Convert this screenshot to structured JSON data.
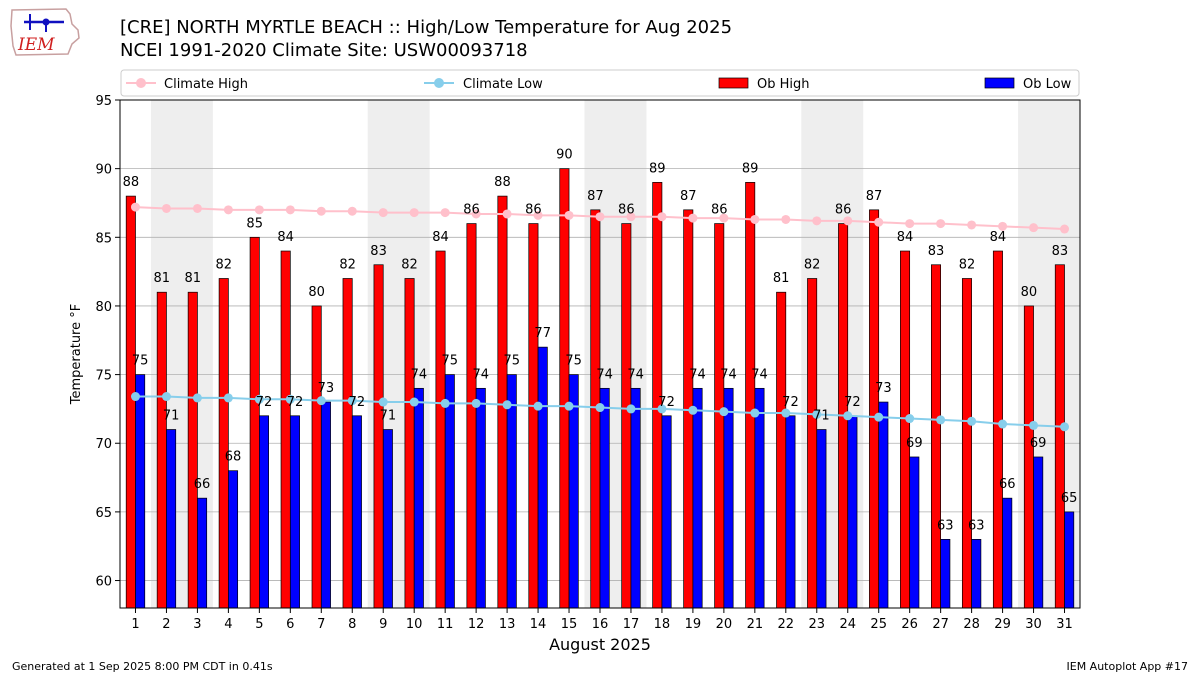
{
  "header": {
    "title_line1": "[CRE] NORTH MYRTLE BEACH :: High/Low Temperature for Aug 2025",
    "title_line2": "NCEI 1991-2020 Climate Site: USW00093718"
  },
  "logo": {
    "text": "IEM",
    "icon": "iowa-state-outline-logo"
  },
  "footer": {
    "left": "Generated at 1 Sep 2025 8:00 PM CDT in 0.41s",
    "right": "IEM Autoplot App #17"
  },
  "colors": {
    "ob_high": "#ff0000",
    "ob_low": "#0000ff",
    "climate_high": "#ffc0cb",
    "climate_low": "#87ceeb",
    "weekend_shade": "#eeeeee",
    "grid": "#b0b0b0"
  },
  "chart_data": {
    "type": "bar",
    "xlabel": "August 2025",
    "ylabel": "Temperature °F",
    "ylim": [
      58,
      95
    ],
    "yticks": [
      60,
      65,
      70,
      75,
      80,
      85,
      90,
      95
    ],
    "grid": "horizontal",
    "legend_position": "top",
    "categories": [
      "1",
      "2",
      "3",
      "4",
      "5",
      "6",
      "7",
      "8",
      "9",
      "10",
      "11",
      "12",
      "13",
      "14",
      "15",
      "16",
      "17",
      "18",
      "19",
      "20",
      "21",
      "22",
      "23",
      "24",
      "25",
      "26",
      "27",
      "28",
      "29",
      "30",
      "31"
    ],
    "weekend_shaded_days": [
      [
        2,
        3
      ],
      [
        9,
        10
      ],
      [
        16,
        17
      ],
      [
        23,
        24
      ],
      [
        30,
        31
      ]
    ],
    "series": [
      {
        "name": "Ob High",
        "kind": "bar",
        "values": [
          88,
          81,
          81,
          82,
          85,
          84,
          80,
          82,
          83,
          82,
          84,
          86,
          88,
          86,
          90,
          87,
          86,
          89,
          87,
          86,
          89,
          81,
          82,
          86,
          87,
          84,
          83,
          82,
          84,
          80,
          83
        ]
      },
      {
        "name": "Ob Low",
        "kind": "bar",
        "values": [
          75,
          71,
          66,
          68,
          72,
          72,
          73,
          72,
          71,
          74,
          75,
          74,
          75,
          77,
          75,
          74,
          74,
          72,
          74,
          74,
          74,
          72,
          71,
          72,
          73,
          69,
          63,
          63,
          66,
          69,
          65
        ]
      },
      {
        "name": "Climate High",
        "kind": "line",
        "values": [
          87.2,
          87.1,
          87.1,
          87.0,
          87.0,
          87.0,
          86.9,
          86.9,
          86.8,
          86.8,
          86.8,
          86.7,
          86.7,
          86.6,
          86.6,
          86.5,
          86.5,
          86.5,
          86.4,
          86.4,
          86.3,
          86.3,
          86.2,
          86.2,
          86.1,
          86.0,
          86.0,
          85.9,
          85.8,
          85.7,
          85.6
        ]
      },
      {
        "name": "Climate Low",
        "kind": "line",
        "values": [
          73.4,
          73.4,
          73.3,
          73.3,
          73.2,
          73.2,
          73.1,
          73.1,
          73.0,
          73.0,
          72.9,
          72.9,
          72.8,
          72.7,
          72.7,
          72.6,
          72.5,
          72.5,
          72.4,
          72.3,
          72.2,
          72.2,
          72.1,
          72.0,
          71.9,
          71.8,
          71.7,
          71.6,
          71.4,
          71.3,
          71.2
        ]
      }
    ]
  }
}
